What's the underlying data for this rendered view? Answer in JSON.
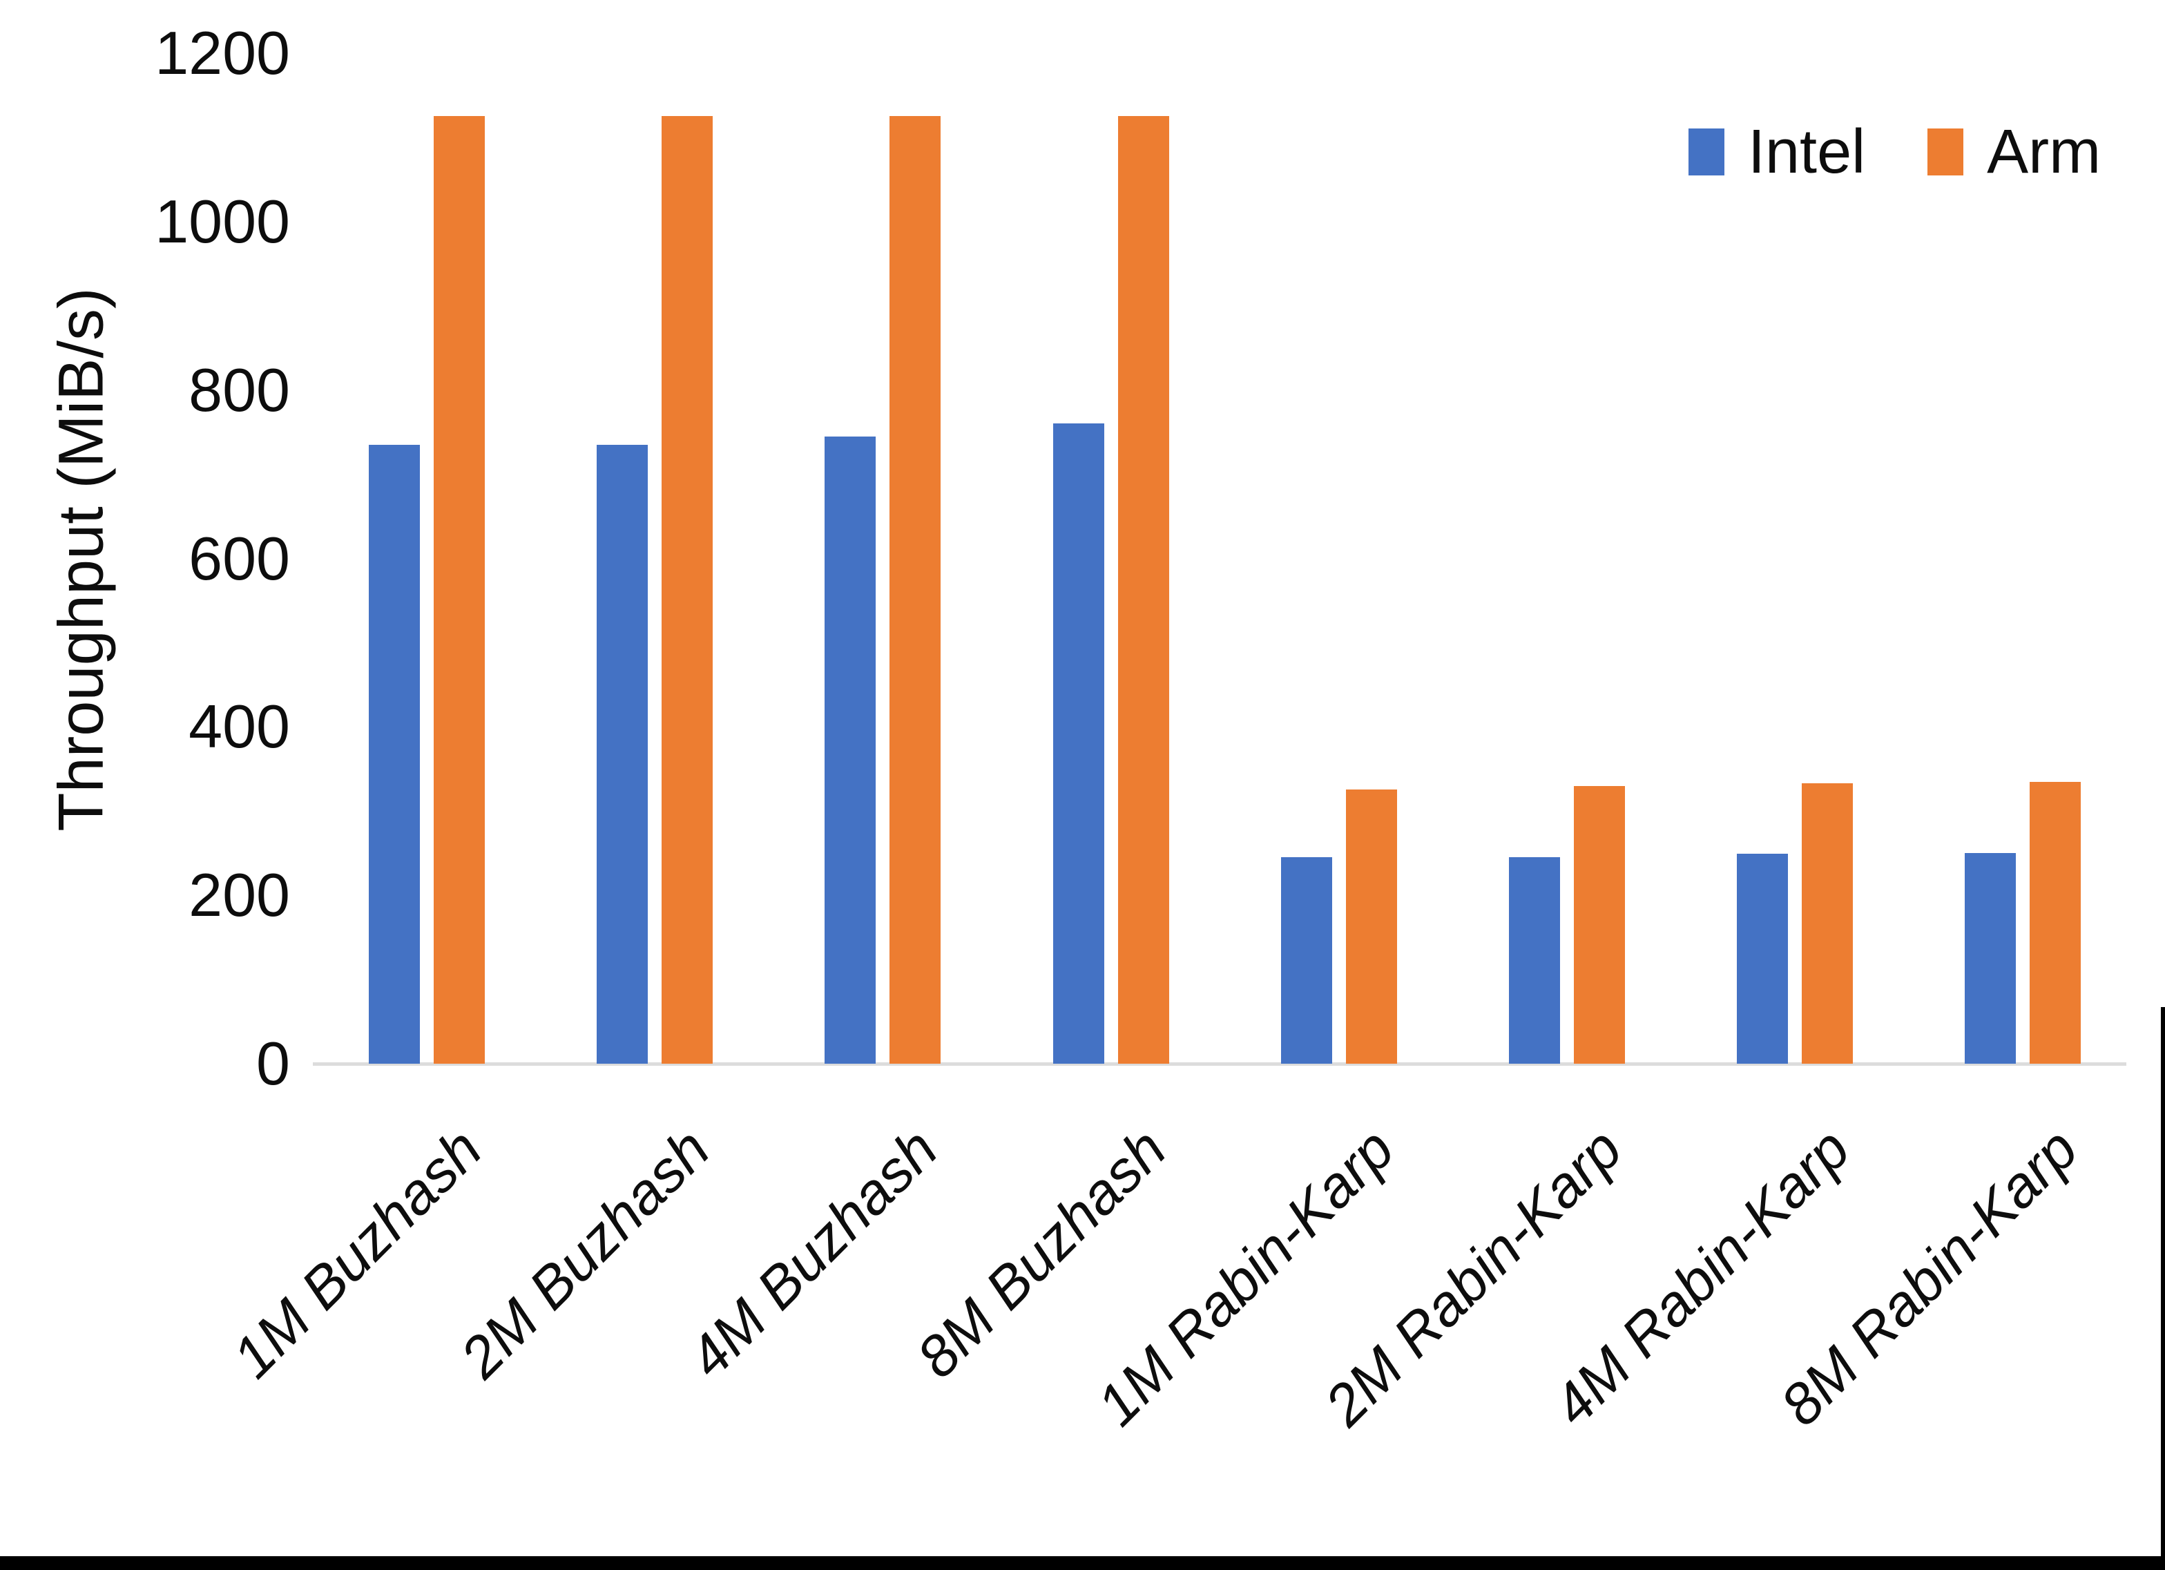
{
  "chart_data": {
    "type": "bar",
    "title": "",
    "xlabel": "",
    "ylabel": "Throughput (MiB/s)",
    "categories": [
      "1M Buzhash",
      "2M Buzhash",
      "4M Buzhash",
      "8M Buzhash",
      "1M Rabin-Karp",
      "2M Rabin-Karp",
      "4M Rabin-Karp",
      "8M Rabin-Karp"
    ],
    "series": [
      {
        "name": "Intel",
        "color": "#4472C4",
        "values": [
          735,
          735,
          745,
          760,
          245,
          245,
          249,
          250
        ]
      },
      {
        "name": "Arm",
        "color": "#ED7D31",
        "values": [
          1125,
          1125,
          1125,
          1125,
          326,
          330,
          333,
          335
        ]
      }
    ],
    "ylim": [
      0,
      1200
    ],
    "yticks": [
      0,
      200,
      400,
      600,
      800,
      1000,
      1200
    ],
    "grid": false,
    "legend_position": "top-right",
    "axis_line_color": "#DCDCDC",
    "value_unit": "MiB/s"
  },
  "frame": {
    "bottom_edge_color": "#000000",
    "right_edge_color": "#000000"
  }
}
